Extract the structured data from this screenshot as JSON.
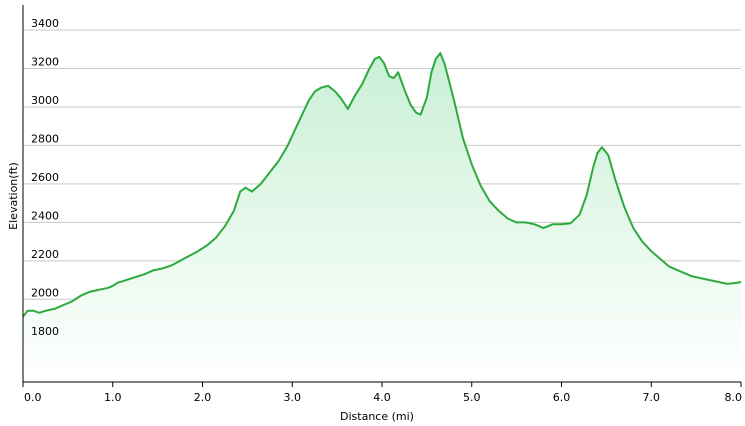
{
  "chart_data": {
    "type": "area",
    "title": "",
    "xlabel": "Distance  (mi)",
    "ylabel": "Elevation(ft)",
    "xlim": [
      0,
      8
    ],
    "ylim": [
      1570,
      3530
    ],
    "x_ticks": [
      "0.0",
      "1.0",
      "2.0",
      "3.0",
      "4.0",
      "5.0",
      "6.0",
      "7.0",
      "8.0"
    ],
    "y_ticks": [
      "1800",
      "2000",
      "2200",
      "2400",
      "2600",
      "2800",
      "3000",
      "3200",
      "3400"
    ],
    "grid": true,
    "legend": "none",
    "colors": {
      "line": "#2eaa3c",
      "fill_top": "#c9f0d6",
      "fill_bottom": "#ffffff",
      "grid": "#c9c9c9",
      "plot_background": "#ffffff"
    },
    "series": [
      {
        "x": [
          0.0,
          0.05,
          0.12,
          0.18,
          0.25,
          0.35,
          0.45,
          0.55,
          0.65,
          0.75,
          0.85,
          0.95,
          1.0,
          1.05,
          1.15,
          1.25,
          1.35,
          1.45,
          1.55,
          1.65,
          1.75,
          1.85,
          1.95,
          2.05,
          2.15,
          2.25,
          2.35,
          2.42,
          2.48,
          2.55,
          2.65,
          2.75,
          2.85,
          2.95,
          3.02,
          3.1,
          3.18,
          3.25,
          3.32,
          3.4,
          3.48,
          3.55,
          3.62,
          3.7,
          3.78,
          3.85,
          3.92,
          3.97,
          4.02,
          4.08,
          4.13,
          4.18,
          4.25,
          4.32,
          4.38,
          4.43,
          4.5,
          4.55,
          4.6,
          4.65,
          4.7,
          4.75,
          4.82,
          4.9,
          5.0,
          5.1,
          5.2,
          5.3,
          5.4,
          5.5,
          5.6,
          5.7,
          5.8,
          5.9,
          6.0,
          6.1,
          6.2,
          6.28,
          6.35,
          6.4,
          6.45,
          6.52,
          6.6,
          6.7,
          6.8,
          6.9,
          7.0,
          7.1,
          7.2,
          7.3,
          7.45,
          7.6,
          7.75,
          7.85,
          7.95,
          8.0
        ],
        "values": [
          1910,
          1940,
          1940,
          1930,
          1940,
          1950,
          1970,
          1990,
          2020,
          2040,
          2050,
          2060,
          2070,
          2085,
          2100,
          2115,
          2130,
          2150,
          2160,
          2175,
          2200,
          2225,
          2250,
          2280,
          2320,
          2380,
          2460,
          2560,
          2580,
          2560,
          2600,
          2660,
          2720,
          2800,
          2870,
          2950,
          3030,
          3080,
          3100,
          3110,
          3080,
          3040,
          2990,
          3060,
          3120,
          3190,
          3250,
          3260,
          3230,
          3160,
          3150,
          3180,
          3090,
          3010,
          2970,
          2960,
          3050,
          3180,
          3250,
          3280,
          3220,
          3130,
          3000,
          2840,
          2700,
          2590,
          2510,
          2460,
          2420,
          2400,
          2400,
          2390,
          2370,
          2390,
          2390,
          2395,
          2440,
          2540,
          2680,
          2760,
          2790,
          2750,
          2620,
          2480,
          2370,
          2300,
          2250,
          2210,
          2170,
          2150,
          2120,
          2105,
          2090,
          2080,
          2085,
          2090
        ]
      }
    ]
  }
}
